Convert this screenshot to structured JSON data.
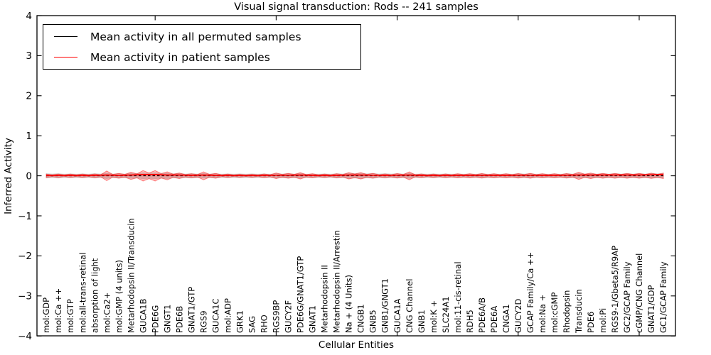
{
  "chart_data": {
    "type": "violin",
    "title": "Visual signal transduction: Rods -- 241 samples",
    "xlabel": "Cellular Entities",
    "ylabel": "Inferred Activity",
    "ylim": [
      -4,
      4
    ],
    "grid": false,
    "legend": {
      "position": "upper left",
      "items": [
        {
          "label": "Mean activity in all permuted samples",
          "color": "#000000",
          "style": "solid"
        },
        {
          "label": "Mean activity in patient samples",
          "color": "#ff0000",
          "style": "solid"
        }
      ]
    },
    "yticks": [
      {
        "value": 4,
        "label": "4"
      },
      {
        "value": 3,
        "label": "3"
      },
      {
        "value": 2,
        "label": "2"
      },
      {
        "value": 1,
        "label": "1"
      },
      {
        "value": 0,
        "label": "0"
      },
      {
        "value": -1,
        "label": "−1"
      },
      {
        "value": -2,
        "label": "−2"
      },
      {
        "value": -3,
        "label": "−3"
      },
      {
        "value": -4,
        "label": "−4"
      }
    ],
    "xtick_major_indices": [
      9,
      19,
      29,
      39,
      49
    ],
    "categories": [
      "mol:GDP",
      "mol:Ca ++",
      "mol:GTP",
      "mol:all-trans-retinal",
      "absorption of light",
      "mol:Ca2+",
      "mol:GMP (4 units)",
      "Metarhodopsin II/Transducin",
      "GUCA1B",
      "PDE6G",
      "GNGT1",
      "PDE6B",
      "GNAT1/GTP",
      "RGS9",
      "GUCA1C",
      "mol:ADP",
      "GRK1",
      "SAG",
      "RHO",
      "RGS9BP",
      "GUCY2F",
      "PDE6G/GNAT1/GTP",
      "GNAT1",
      "Metarhodopsin II",
      "Metarhodopsin II/Arrestin",
      "Na + (4 Units)",
      "CNGB1",
      "GNB5",
      "GNB1/GNGT1",
      "GUCA1A",
      "CNG Channel",
      "GNB1",
      "mol:K +",
      "SLC24A1",
      "mol:11-cis-retinal",
      "RDH5",
      "PDE6A/B",
      "PDE6A",
      "CNGA1",
      "GUCY2D",
      "GCAP Family/Ca ++",
      "mol:Na +",
      "mol:cGMP",
      "Rhodopsin",
      "Transducin",
      "PDE6",
      "mol:Pi",
      "RGS9-1/Gbeta5/R9AP",
      "GC2/GCAP Family",
      "cGMP/CNG Channel",
      "GNAT1/GDP",
      "GC1/GCAP Family"
    ],
    "series": [
      {
        "name": "Mean activity in all permuted samples",
        "color": "#000000",
        "style": "dashed",
        "values": [
          0,
          0,
          0,
          0,
          0,
          0,
          0,
          0,
          0,
          0,
          0,
          0,
          0,
          0,
          0,
          0,
          0,
          0,
          0,
          0,
          0,
          0,
          0,
          0,
          0,
          0,
          0,
          0,
          0,
          0,
          0,
          0,
          0,
          0,
          0,
          0,
          0,
          0,
          0,
          0,
          0,
          0,
          0,
          0,
          0,
          0,
          0,
          0,
          0,
          0,
          0,
          0
        ]
      },
      {
        "name": "Mean activity in patient samples",
        "color": "#ff0000",
        "style": "solid",
        "values": [
          0.01,
          0.01,
          0.01,
          0.01,
          0.01,
          0.02,
          0.01,
          0.02,
          0.03,
          0.03,
          0.02,
          0.02,
          0.01,
          0.02,
          0.01,
          0.01,
          0.01,
          0.01,
          0.01,
          0.015,
          0.015,
          0.02,
          0.01,
          0.01,
          0.01,
          0.02,
          0.02,
          0.015,
          0.01,
          0.015,
          0.02,
          0.01,
          0.01,
          0.01,
          0.01,
          0.01,
          0.015,
          0.01,
          0.01,
          0.015,
          0.015,
          0.01,
          0.01,
          0.015,
          0.02,
          0.02,
          0.02,
          0.02,
          0.02,
          0.02,
          0.025,
          0.03
        ]
      }
    ],
    "violins": [
      {
        "name": "permuted samples distribution",
        "color": "#aaaaaa",
        "half_widths": [
          0.055,
          0.055,
          0.05,
          0.05,
          0.055,
          0.07,
          0.055,
          0.065,
          0.075,
          0.075,
          0.07,
          0.06,
          0.055,
          0.06,
          0.055,
          0.05,
          0.05,
          0.05,
          0.05,
          0.055,
          0.055,
          0.06,
          0.05,
          0.05,
          0.055,
          0.065,
          0.065,
          0.06,
          0.055,
          0.055,
          0.065,
          0.05,
          0.05,
          0.05,
          0.05,
          0.05,
          0.055,
          0.05,
          0.05,
          0.055,
          0.055,
          0.05,
          0.05,
          0.055,
          0.06,
          0.055,
          0.055,
          0.055,
          0.055,
          0.055,
          0.06,
          0.06
        ]
      },
      {
        "name": "patient samples distribution",
        "color": "#ff0000",
        "half_widths": [
          0.04,
          0.04,
          0.04,
          0.04,
          0.045,
          0.12,
          0.06,
          0.09,
          0.13,
          0.13,
          0.1,
          0.07,
          0.05,
          0.1,
          0.06,
          0.04,
          0.035,
          0.035,
          0.045,
          0.07,
          0.06,
          0.08,
          0.05,
          0.04,
          0.05,
          0.08,
          0.08,
          0.06,
          0.045,
          0.055,
          0.1,
          0.045,
          0.04,
          0.045,
          0.05,
          0.05,
          0.055,
          0.05,
          0.05,
          0.055,
          0.06,
          0.05,
          0.05,
          0.055,
          0.09,
          0.07,
          0.06,
          0.06,
          0.06,
          0.06,
          0.065,
          0.07
        ]
      }
    ]
  }
}
